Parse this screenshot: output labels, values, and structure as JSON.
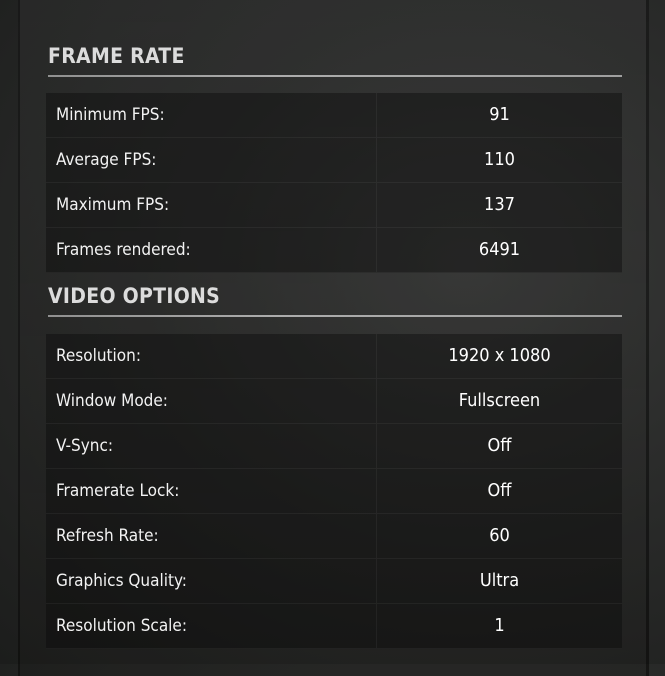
{
  "frame_rate": {
    "title": "FRAME RATE",
    "rows": [
      {
        "label": "Minimum FPS:",
        "value": "91"
      },
      {
        "label": "Average FPS:",
        "value": "110"
      },
      {
        "label": "Maximum FPS:",
        "value": "137"
      },
      {
        "label": "Frames rendered:",
        "value": "6491"
      }
    ]
  },
  "video_options": {
    "title": "VIDEO OPTIONS",
    "rows": [
      {
        "label": "Resolution:",
        "value": "1920 x 1080"
      },
      {
        "label": "Window Mode:",
        "value": "Fullscreen"
      },
      {
        "label": "V-Sync:",
        "value": "Off"
      },
      {
        "label": "Framerate Lock:",
        "value": "Off"
      },
      {
        "label": "Refresh Rate:",
        "value": "60"
      },
      {
        "label": "Graphics Quality:",
        "value": "Ultra"
      },
      {
        "label": "Resolution Scale:",
        "value": "1"
      }
    ]
  }
}
